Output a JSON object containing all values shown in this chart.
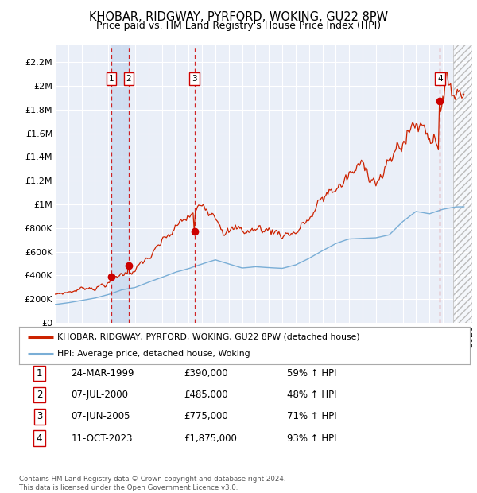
{
  "title": "KHOBAR, RIDGWAY, PYRFORD, WOKING, GU22 8PW",
  "subtitle": "Price paid vs. HM Land Registry's House Price Index (HPI)",
  "ylabel_ticks": [
    "£0",
    "£200K",
    "£400K",
    "£600K",
    "£800K",
    "£1M",
    "£1.2M",
    "£1.4M",
    "£1.6M",
    "£1.8M",
    "£2M",
    "£2.2M"
  ],
  "ytick_values": [
    0,
    200000,
    400000,
    600000,
    800000,
    1000000,
    1200000,
    1400000,
    1600000,
    1800000,
    2000000,
    2200000
  ],
  "ylim": [
    0,
    2350000
  ],
  "xlim_start": 1995.0,
  "xlim_end": 2026.2,
  "sale_dates": [
    1999.23,
    2000.52,
    2005.44,
    2023.79
  ],
  "sale_prices": [
    390000,
    485000,
    775000,
    1875000
  ],
  "sale_labels": [
    "1",
    "2",
    "3",
    "4"
  ],
  "vline_color": "#cc0000",
  "sale_dot_color": "#cc0000",
  "hpi_line_color": "#7aaed6",
  "property_line_color": "#cc2200",
  "background_color": "#eaeff8",
  "shade_between_1_2_color": "#d0ddf0",
  "hatch_region_start": 2024.75,
  "legend_property_label": "KHOBAR, RIDGWAY, PYRFORD, WOKING, GU22 8PW (detached house)",
  "legend_hpi_label": "HPI: Average price, detached house, Woking",
  "table_rows": [
    [
      "1",
      "24-MAR-1999",
      "£390,000",
      "59% ↑ HPI"
    ],
    [
      "2",
      "07-JUL-2000",
      "£485,000",
      "48% ↑ HPI"
    ],
    [
      "3",
      "07-JUN-2005",
      "£775,000",
      "71% ↑ HPI"
    ],
    [
      "4",
      "11-OCT-2023",
      "£1,875,000",
      "93% ↑ HPI"
    ]
  ],
  "footnote": "Contains HM Land Registry data © Crown copyright and database right 2024.\nThis data is licensed under the Open Government Licence v3.0.",
  "title_fontsize": 10.5,
  "subtitle_fontsize": 9,
  "tick_fontsize": 8,
  "label_fontsize": 8
}
